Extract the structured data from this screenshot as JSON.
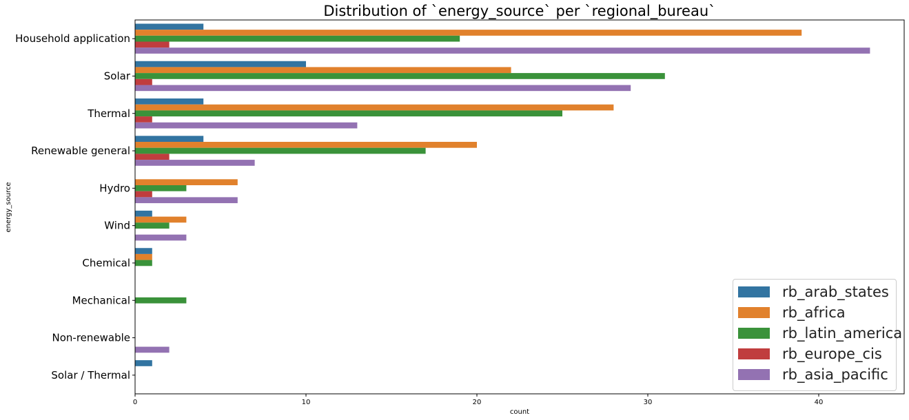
{
  "chart_data": {
    "type": "bar",
    "orientation": "horizontal",
    "title": "Distribution of `energy_source` per `regional_bureau`",
    "xlabel": "count",
    "ylabel": "energy_source",
    "xlim": [
      0,
      45
    ],
    "xticks": [
      0,
      10,
      20,
      30,
      40
    ],
    "grid": false,
    "legend_position": "bottom-right",
    "categories": [
      "Household application",
      "Solar",
      "Thermal",
      "Renewable general",
      "Hydro",
      "Wind",
      "Chemical",
      "Mechanical",
      "Non-renewable",
      "Solar / Thermal"
    ],
    "series": [
      {
        "name": "rb_arab_states",
        "color": "#3274a1",
        "values": [
          4,
          10,
          4,
          4,
          0,
          1,
          1,
          0,
          0,
          1
        ]
      },
      {
        "name": "rb_africa",
        "color": "#e1812c",
        "values": [
          39,
          22,
          28,
          20,
          6,
          3,
          1,
          0,
          0,
          0
        ]
      },
      {
        "name": "rb_latin_america",
        "color": "#3a923a",
        "values": [
          19,
          31,
          25,
          17,
          3,
          2,
          1,
          3,
          0,
          0
        ]
      },
      {
        "name": "rb_europe_cis",
        "color": "#c03d3e",
        "values": [
          2,
          1,
          1,
          2,
          1,
          0,
          0,
          0,
          0,
          0
        ]
      },
      {
        "name": "rb_asia_pacific",
        "color": "#9372b2",
        "values": [
          43,
          29,
          13,
          7,
          6,
          3,
          0,
          0,
          2,
          0
        ]
      }
    ]
  }
}
